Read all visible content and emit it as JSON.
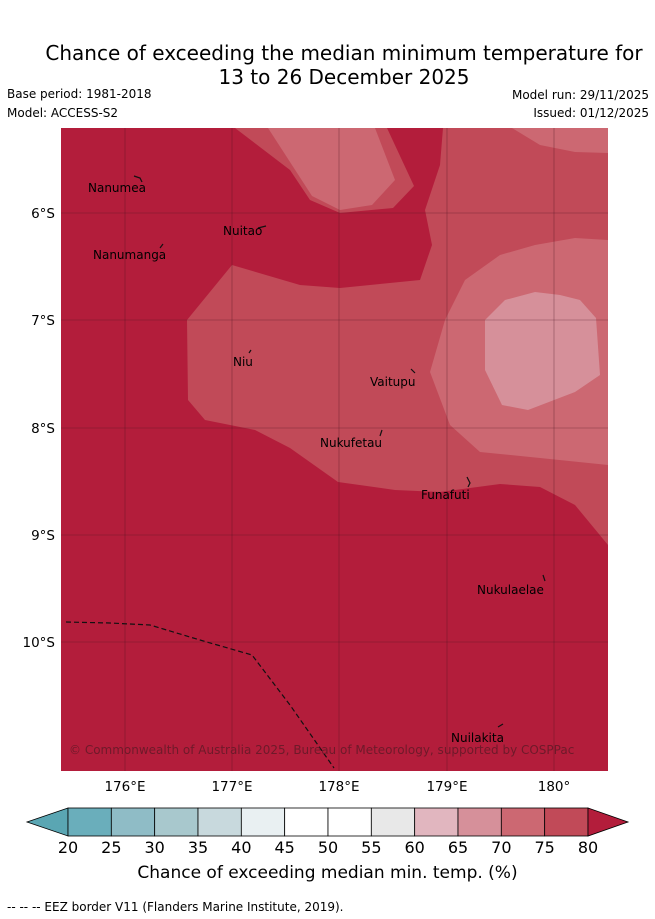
{
  "header": {
    "title_line1": "Chance of exceeding the median minimum temperature for",
    "title_line2": "13 to 26 December 2025",
    "base_period": "Base period: 1981-2018",
    "model": "Model: ACCESS-S2",
    "model_run": "Model run: 29/11/2025",
    "issued": "Issued: 01/12/2025"
  },
  "map": {
    "lon_labels": [
      "176°E",
      "177°E",
      "178°E",
      "179°E",
      "180°"
    ],
    "lat_labels": [
      "6°S",
      "7°S",
      "8°S",
      "9°S",
      "10°S"
    ],
    "places": [
      "Nanumea",
      "Nuitao",
      "Nanumanga",
      "Niu",
      "Vaitupu",
      "Nukufetau",
      "Funafuti",
      "Nukulaelae",
      "Nuilakita"
    ],
    "copyright": "© Commonwealth of Australia 2025, Bureau of Meteorology, supported by COSPPac"
  },
  "colorbar": {
    "ticks": [
      "20",
      "25",
      "30",
      "35",
      "40",
      "45",
      "50",
      "55",
      "60",
      "65",
      "70",
      "75",
      "80"
    ],
    "label": "Chance of exceeding median min. temp. (%)",
    "colors": {
      "under": "#5aa6b3",
      "c20": "#6aaebb",
      "c25": "#8fbcc6",
      "c30": "#a8c8cd",
      "c35": "#c8d9dd",
      "c40": "#e9f0f2",
      "c45": "#ffffff",
      "c50": "#ffffff",
      "c55": "#e8e8e8",
      "c60": "#e1b6bf",
      "c65": "#d6909a",
      "c70": "#cc6872",
      "c75": "#c14a58",
      "over": "#b31d3b"
    }
  },
  "footer": {
    "eez_note": "--  --  -- EEZ border V11 (Flanders Marine Institute, 2019)."
  }
}
